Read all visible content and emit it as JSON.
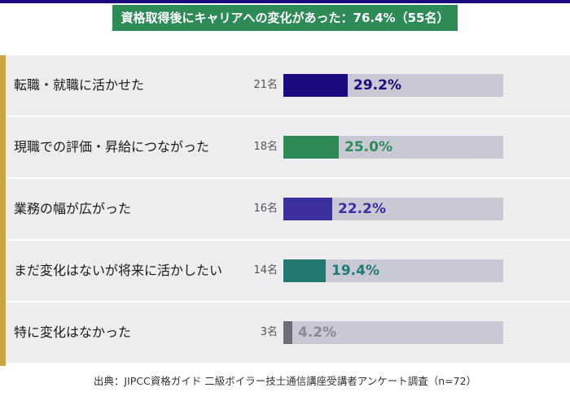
{
  "title": "資格取得後にキャリアへの変化があった：76.4%（55名）",
  "source": "出典：JIPCC資格ガイド 二級ボイラー技士通信講座受講者アンケート調査（n=72）",
  "colors": {
    "top_line": "#1a0a80",
    "banner": "#2e8b57",
    "accent": "#c9a646",
    "track": "#c9c9d6",
    "row_bg": "#ededf0"
  },
  "chart_data": {
    "type": "bar",
    "orientation": "horizontal",
    "title": "資格取得後にキャリアへの変化があった：76.4%（55名）",
    "xlim": [
      0,
      100
    ],
    "categories": [
      "転職・就職に活かせた",
      "現職での評価・昇給につながった",
      "業務の幅が広がった",
      "まだ変化はないが将来に活かしたい",
      "特に変化はなかった"
    ],
    "values": [
      29.2,
      25.0,
      22.2,
      19.4,
      4.2
    ],
    "value_labels": [
      "29.2%",
      "25.0%",
      "22.2%",
      "19.4%",
      "4.2%"
    ],
    "counts": [
      "21名",
      "18名",
      "16名",
      "14名",
      "3名"
    ],
    "bar_colors": [
      "#1a0a80",
      "#2e8b57",
      "#3c2fa0",
      "#237a72",
      "#6e6e78"
    ],
    "label_colors": [
      "#1a0a80",
      "#2e8b57",
      "#3c2fa0",
      "#237a72",
      "#8a8a94"
    ]
  }
}
